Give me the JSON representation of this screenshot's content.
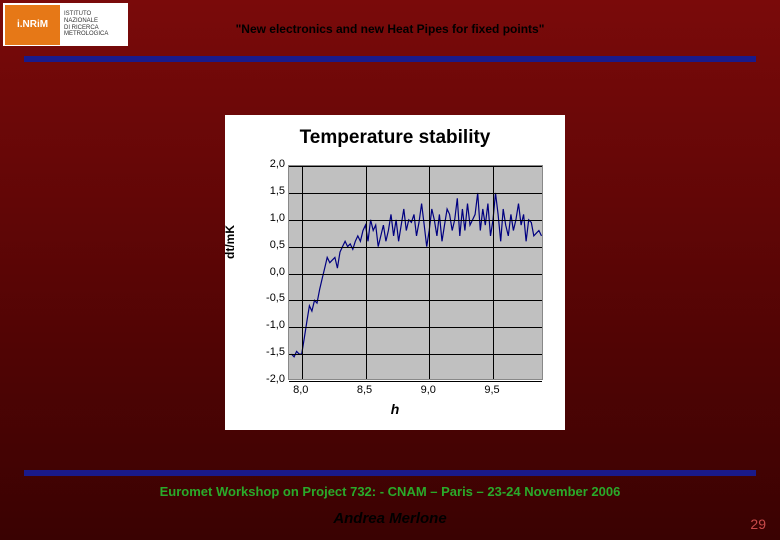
{
  "logo": {
    "mark": "i.NRiM",
    "subtitle1": "Istituto",
    "subtitle2": "Nazionale",
    "subtitle3": "di Ricerca",
    "subtitle4": "Metrologica"
  },
  "header": {
    "title": "\"New electronics and  new Heat Pipes for fixed points\""
  },
  "chart": {
    "type": "line",
    "title": "Temperature stability",
    "xlabel": "h",
    "ylabel": "dt/mK",
    "xlim": [
      7.9,
      9.9
    ],
    "ylim": [
      -2.0,
      2.0
    ],
    "yticks": [
      -2.0,
      -1.5,
      -1.0,
      -0.5,
      0.0,
      0.5,
      1.0,
      1.5,
      2.0
    ],
    "ytick_labels": [
      "-2,0",
      "-1,5",
      "-1,0",
      "-0,5",
      "0,0",
      "0,5",
      "1,0",
      "1,5",
      "2,0"
    ],
    "xticks": [
      8.0,
      8.5,
      9.0,
      9.5
    ],
    "xtick_labels": [
      "8,0",
      "8,5",
      "9,0",
      "9,5"
    ],
    "line_color": "#000080",
    "line_width": 1.2,
    "background_color": "#c0c0c0",
    "grid_color": "#000000",
    "title_fontsize": 19,
    "label_fontsize": 12,
    "tick_fontsize": 11,
    "x": [
      7.92,
      7.94,
      7.96,
      7.98,
      8.0,
      8.02,
      8.04,
      8.06,
      8.08,
      8.1,
      8.12,
      8.14,
      8.16,
      8.18,
      8.2,
      8.22,
      8.24,
      8.26,
      8.28,
      8.3,
      8.32,
      8.34,
      8.36,
      8.38,
      8.4,
      8.42,
      8.44,
      8.46,
      8.48,
      8.5,
      8.52,
      8.54,
      8.56,
      8.58,
      8.6,
      8.62,
      8.64,
      8.66,
      8.68,
      8.7,
      8.72,
      8.74,
      8.76,
      8.78,
      8.8,
      8.82,
      8.84,
      8.86,
      8.88,
      8.9,
      8.92,
      8.94,
      8.96,
      8.98,
      9.0,
      9.02,
      9.04,
      9.06,
      9.08,
      9.1,
      9.12,
      9.14,
      9.16,
      9.18,
      9.2,
      9.22,
      9.24,
      9.26,
      9.28,
      9.3,
      9.32,
      9.34,
      9.36,
      9.38,
      9.4,
      9.42,
      9.44,
      9.46,
      9.48,
      9.5,
      9.52,
      9.54,
      9.56,
      9.58,
      9.6,
      9.62,
      9.64,
      9.66,
      9.68,
      9.7,
      9.72,
      9.74,
      9.76,
      9.78,
      9.8,
      9.82,
      9.84,
      9.86,
      9.88
    ],
    "y": [
      -1.5,
      -1.55,
      -1.45,
      -1.5,
      -1.5,
      -1.2,
      -0.9,
      -0.6,
      -0.7,
      -0.5,
      -0.55,
      -0.3,
      -0.1,
      0.1,
      0.3,
      0.2,
      0.25,
      0.3,
      0.1,
      0.4,
      0.5,
      0.6,
      0.5,
      0.55,
      0.45,
      0.6,
      0.7,
      0.6,
      0.8,
      0.9,
      0.6,
      1.0,
      0.8,
      0.9,
      0.5,
      0.7,
      0.9,
      0.6,
      0.8,
      1.1,
      0.7,
      1.0,
      0.6,
      0.9,
      1.2,
      0.8,
      1.0,
      0.95,
      1.1,
      0.7,
      0.95,
      1.3,
      0.9,
      0.5,
      0.8,
      1.2,
      1.0,
      0.7,
      1.1,
      0.6,
      0.9,
      1.2,
      1.1,
      0.8,
      1.0,
      1.4,
      0.7,
      1.2,
      0.8,
      1.3,
      0.9,
      1.0,
      1.1,
      1.5,
      0.8,
      1.2,
      0.9,
      1.3,
      0.7,
      1.0,
      1.5,
      1.1,
      0.6,
      1.2,
      0.9,
      0.7,
      1.1,
      0.8,
      1.0,
      1.3,
      0.9,
      1.1,
      0.6,
      1.0,
      0.95,
      0.7,
      0.75,
      0.8,
      0.7
    ]
  },
  "footer": {
    "workshop": "Euromet Workshop on Project 732: - CNAM – Paris – 23-24 November 2006",
    "author": "Andrea Merlone",
    "slide_number": "29"
  },
  "colors": {
    "background_top": "#7a0a0a",
    "background_bottom": "#3a0202",
    "bar": "#1a1a8a",
    "footer_text": "#2aaa2a",
    "slide_number": "#c94a4a"
  }
}
